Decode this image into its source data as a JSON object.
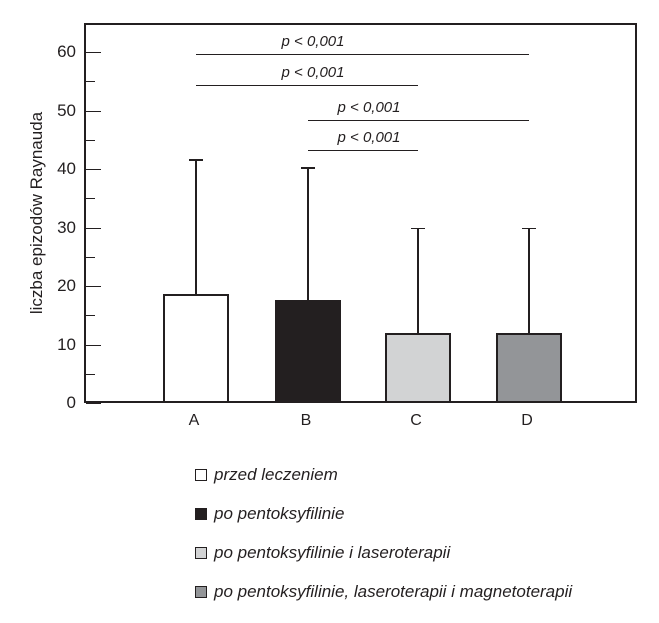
{
  "y_axis": {
    "title": "liczba epizodów Raynauda"
  },
  "chart_data": {
    "type": "bar",
    "title": "",
    "categories": [
      "A",
      "B",
      "C",
      "D"
    ],
    "values": [
      19,
      18,
      12.3,
      12.3
    ],
    "error_bar_tops": [
      42,
      40.7,
      30.3,
      30.3
    ],
    "xlabel": "",
    "ylabel": "liczba epizodów Raynauda",
    "ylim": [
      0,
      65
    ],
    "yticks_major": [
      0,
      10,
      20,
      30,
      40,
      50,
      60
    ],
    "yticks_minor": [
      5,
      15,
      25,
      35,
      45,
      55
    ],
    "grid": false,
    "legend_position": "below-chart",
    "bar_border_color": "#231f20",
    "bar_fill_colors": [
      "#ffffff",
      "#231f20",
      "#d2d3d4",
      "#939598"
    ],
    "significance_lines": [
      {
        "label": "p < 0,001",
        "from": "A",
        "to": "D",
        "height": 60,
        "label_midpoint_of": [
          "A",
          "C"
        ]
      },
      {
        "label": "p < 0,001",
        "from": "A",
        "to": "C",
        "height": 54.7,
        "label_midpoint_of": [
          "A",
          "C"
        ]
      },
      {
        "label": "p < 0,001",
        "from": "B",
        "to": "D",
        "height": 48.7,
        "label_midpoint_of": [
          "B",
          "C"
        ]
      },
      {
        "label": "p < 0,001",
        "from": "B",
        "to": "C",
        "height": 43.6,
        "label_midpoint_of": [
          "B",
          "C"
        ]
      }
    ],
    "legend": [
      {
        "label": "przed leczeniem",
        "color": "#ffffff"
      },
      {
        "label": "po pentoksyfilinie",
        "color": "#231f20"
      },
      {
        "label": "po pentoksyfilinie i laseroterapii",
        "color": "#d2d3d4"
      },
      {
        "label": "po pentoksyfilinie, laseroterapii i magnetoterapii",
        "color": "#939598"
      }
    ]
  }
}
